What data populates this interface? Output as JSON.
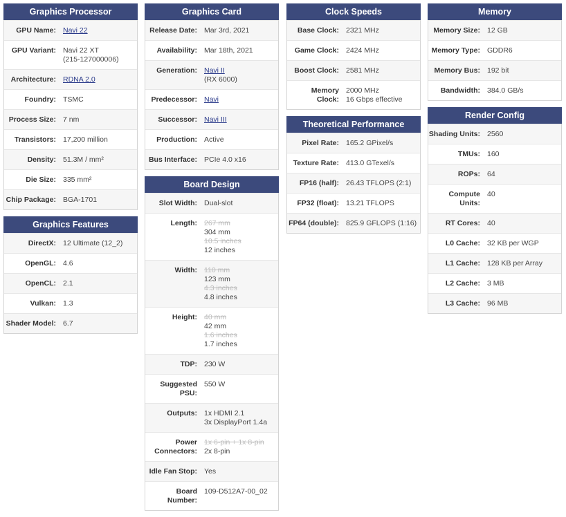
{
  "columns": [
    [
      {
        "title": "Graphics Processor",
        "rows": [
          {
            "label": "GPU Name:",
            "values": [
              {
                "text": "Navi 22",
                "link": true
              }
            ]
          },
          {
            "label": "GPU Variant:",
            "values": [
              {
                "text": "Navi 22 XT"
              },
              {
                "text": "(215-127000006)"
              }
            ]
          },
          {
            "label": "Architecture:",
            "values": [
              {
                "text": "RDNA 2.0",
                "link": true
              }
            ]
          },
          {
            "label": "Foundry:",
            "values": [
              {
                "text": "TSMC"
              }
            ]
          },
          {
            "label": "Process Size:",
            "values": [
              {
                "text": "7 nm"
              }
            ]
          },
          {
            "label": "Transistors:",
            "values": [
              {
                "text": "17,200 million"
              }
            ]
          },
          {
            "label": "Density:",
            "values": [
              {
                "text": "51.3M / mm²"
              }
            ]
          },
          {
            "label": "Die Size:",
            "values": [
              {
                "text": "335 mm²"
              }
            ]
          },
          {
            "label": "Chip Package:",
            "values": [
              {
                "text": "BGA-1701"
              }
            ]
          }
        ]
      },
      {
        "title": "Graphics Features",
        "rows": [
          {
            "label": "DirectX:",
            "values": [
              {
                "text": "12 Ultimate (12_2)"
              }
            ]
          },
          {
            "label": "OpenGL:",
            "values": [
              {
                "text": "4.6"
              }
            ]
          },
          {
            "label": "OpenCL:",
            "values": [
              {
                "text": "2.1"
              }
            ]
          },
          {
            "label": "Vulkan:",
            "values": [
              {
                "text": "1.3"
              }
            ]
          },
          {
            "label": "Shader Model:",
            "values": [
              {
                "text": "6.7"
              }
            ]
          }
        ]
      }
    ],
    [
      {
        "title": "Graphics Card",
        "rows": [
          {
            "label": "Release Date:",
            "values": [
              {
                "text": "Mar 3rd, 2021"
              }
            ]
          },
          {
            "label": "Availability:",
            "values": [
              {
                "text": "Mar 18th, 2021"
              }
            ]
          },
          {
            "label": "Generation:",
            "values": [
              {
                "text": "Navi II",
                "link": true
              },
              {
                "text": "(RX 6000)"
              }
            ]
          },
          {
            "label": "Predecessor:",
            "values": [
              {
                "text": "Navi",
                "link": true
              }
            ]
          },
          {
            "label": "Successor:",
            "values": [
              {
                "text": "Navi III",
                "link": true
              }
            ]
          },
          {
            "label": "Production:",
            "values": [
              {
                "text": "Active"
              }
            ]
          },
          {
            "label": "Bus Interface:",
            "values": [
              {
                "text": "PCIe 4.0 x16"
              }
            ]
          }
        ]
      },
      {
        "title": "Board Design",
        "rows": [
          {
            "label": "Slot Width:",
            "values": [
              {
                "text": "Dual-slot"
              }
            ]
          },
          {
            "label": "Length:",
            "values": [
              {
                "text": "267 mm",
                "strike": true
              },
              {
                "text": "304 mm"
              },
              {
                "text": "10.5 inches",
                "strike": true
              },
              {
                "text": "12 inches"
              }
            ]
          },
          {
            "label": "Width:",
            "values": [
              {
                "text": "110 mm",
                "strike": true
              },
              {
                "text": "123 mm"
              },
              {
                "text": "4.3 inches",
                "strike": true
              },
              {
                "text": "4.8 inches"
              }
            ]
          },
          {
            "label": "Height:",
            "values": [
              {
                "text": "40 mm",
                "strike": true
              },
              {
                "text": "42 mm"
              },
              {
                "text": "1.6 inches",
                "strike": true
              },
              {
                "text": "1.7 inches"
              }
            ]
          },
          {
            "label": "TDP:",
            "values": [
              {
                "text": "230 W"
              }
            ]
          },
          {
            "label": "Suggested PSU:",
            "values": [
              {
                "text": "550 W"
              }
            ]
          },
          {
            "label": "Outputs:",
            "values": [
              {
                "text": "1x HDMI 2.1"
              },
              {
                "text": "3x DisplayPort 1.4a"
              }
            ]
          },
          {
            "label": "Power Connectors:",
            "values": [
              {
                "text": "1x 6-pin + 1x 8-pin",
                "strike": true
              },
              {
                "text": "2x 8-pin"
              }
            ]
          },
          {
            "label": "Idle Fan Stop:",
            "values": [
              {
                "text": "Yes"
              }
            ]
          },
          {
            "label": "Board Number:",
            "values": [
              {
                "text": "109-D512A7-00_02"
              }
            ]
          }
        ]
      }
    ],
    [
      {
        "title": "Clock Speeds",
        "rows": [
          {
            "label": "Base Clock:",
            "values": [
              {
                "text": "2321 MHz"
              }
            ]
          },
          {
            "label": "Game Clock:",
            "values": [
              {
                "text": "2424 MHz"
              }
            ]
          },
          {
            "label": "Boost Clock:",
            "values": [
              {
                "text": "2581 MHz"
              }
            ]
          },
          {
            "label": "Memory Clock:",
            "values": [
              {
                "text": "2000 MHz"
              },
              {
                "text": "16 Gbps effective"
              }
            ]
          }
        ]
      },
      {
        "title": "Theoretical Performance",
        "rows": [
          {
            "label": "Pixel Rate:",
            "values": [
              {
                "text": "165.2 GPixel/s"
              }
            ]
          },
          {
            "label": "Texture Rate:",
            "values": [
              {
                "text": "413.0 GTexel/s"
              }
            ]
          },
          {
            "label": "FP16 (half):",
            "values": [
              {
                "text": "26.43 TFLOPS (2:1)"
              }
            ]
          },
          {
            "label": "FP32 (float):",
            "values": [
              {
                "text": "13.21 TFLOPS"
              }
            ]
          },
          {
            "label": "FP64 (double):",
            "values": [
              {
                "text": "825.9 GFLOPS (1:16)"
              }
            ]
          }
        ]
      }
    ],
    [
      {
        "title": "Memory",
        "rows": [
          {
            "label": "Memory Size:",
            "values": [
              {
                "text": "12 GB"
              }
            ]
          },
          {
            "label": "Memory Type:",
            "values": [
              {
                "text": "GDDR6"
              }
            ]
          },
          {
            "label": "Memory Bus:",
            "values": [
              {
                "text": "192 bit"
              }
            ]
          },
          {
            "label": "Bandwidth:",
            "values": [
              {
                "text": "384.0 GB/s"
              }
            ]
          }
        ]
      },
      {
        "title": "Render Config",
        "rows": [
          {
            "label": "Shading Units:",
            "values": [
              {
                "text": "2560"
              }
            ]
          },
          {
            "label": "TMUs:",
            "values": [
              {
                "text": "160"
              }
            ]
          },
          {
            "label": "ROPs:",
            "values": [
              {
                "text": "64"
              }
            ]
          },
          {
            "label": "Compute Units:",
            "values": [
              {
                "text": "40"
              }
            ]
          },
          {
            "label": "RT Cores:",
            "values": [
              {
                "text": "40"
              }
            ]
          },
          {
            "label": "L0 Cache:",
            "values": [
              {
                "text": "32 KB per WGP"
              }
            ]
          },
          {
            "label": "L1 Cache:",
            "values": [
              {
                "text": "128 KB per Array"
              }
            ]
          },
          {
            "label": "L2 Cache:",
            "values": [
              {
                "text": "3 MB"
              }
            ]
          },
          {
            "label": "L3 Cache:",
            "values": [
              {
                "text": "96 MB"
              }
            ]
          }
        ]
      }
    ]
  ]
}
